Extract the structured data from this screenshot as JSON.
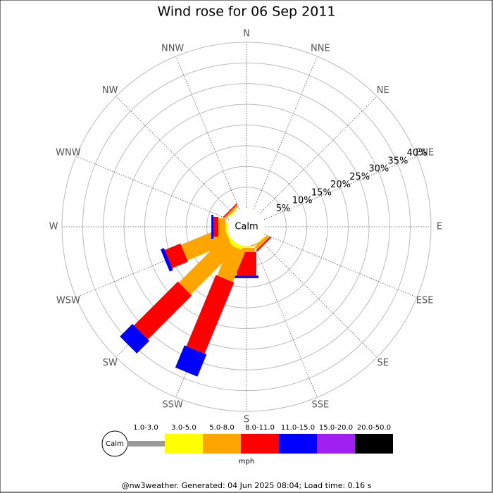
{
  "chart_data": {
    "type": "rose",
    "title": "Wind rose for 06 Sep 2011",
    "calm_label": "Calm",
    "units": "mph",
    "footer": "@nw3weather. Generated: 04 Jun 2025 08:04; Load time: 0.16 s",
    "categories": [
      "N",
      "NNE",
      "NE",
      "ENE",
      "E",
      "ESE",
      "SE",
      "SSE",
      "S",
      "SSW",
      "SW",
      "WSW",
      "W",
      "WNW",
      "NW",
      "NNW"
    ],
    "rlim": [
      0,
      40
    ],
    "rticks": [
      {
        "value": 5,
        "label": "5%"
      },
      {
        "value": 10,
        "label": "10%"
      },
      {
        "value": 15,
        "label": "15%"
      },
      {
        "value": 20,
        "label": "20%"
      },
      {
        "value": 25,
        "label": "25%"
      },
      {
        "value": 30,
        "label": "30%"
      },
      {
        "value": 35,
        "label": "35%"
      },
      {
        "value": 40,
        "label": "40%"
      }
    ],
    "series": [
      {
        "name": "1.0-3.0",
        "color": "#999999",
        "values": [
          0,
          0,
          0,
          0,
          0,
          0,
          0,
          0,
          0,
          0,
          0,
          0,
          0,
          0,
          0,
          0
        ]
      },
      {
        "name": "3.0-5.0",
        "color": "#ffff00",
        "values": [
          0,
          0,
          0,
          0,
          0,
          0,
          0.3,
          0,
          0.5,
          1,
          1,
          0.5,
          0.5,
          0,
          0.3,
          0
        ]
      },
      {
        "name": "5.0-8.0",
        "color": "#ffa500",
        "values": [
          0,
          0,
          0,
          0,
          0,
          0,
          0.8,
          0.3,
          1,
          8,
          15.5,
          11.2,
          1.7,
          0,
          0.5,
          0
        ]
      },
      {
        "name": "8.0-11.0",
        "color": "#ff0000",
        "values": [
          0,
          0,
          0,
          0,
          0,
          0,
          0.4,
          0,
          5.7,
          18.6,
          15,
          4.1,
          1.2,
          0,
          0.3,
          0
        ]
      },
      {
        "name": "11.0-15.0",
        "color": "#0000ff",
        "values": [
          0,
          0,
          0,
          0,
          0,
          0,
          0,
          0,
          0.6,
          5.8,
          4.3,
          0.9,
          0.5,
          0,
          0,
          0
        ]
      },
      {
        "name": "15.0-20.0",
        "color": "#a020f0",
        "values": [
          0,
          0,
          0,
          0,
          0,
          0,
          0,
          0,
          0,
          0,
          0,
          0,
          0,
          0,
          0,
          0
        ]
      },
      {
        "name": "20.0-50.0",
        "color": "#000000",
        "values": [
          0,
          0,
          0,
          0,
          0,
          0,
          0,
          0,
          0,
          0,
          0,
          0,
          0,
          0,
          0,
          0
        ]
      }
    ]
  }
}
